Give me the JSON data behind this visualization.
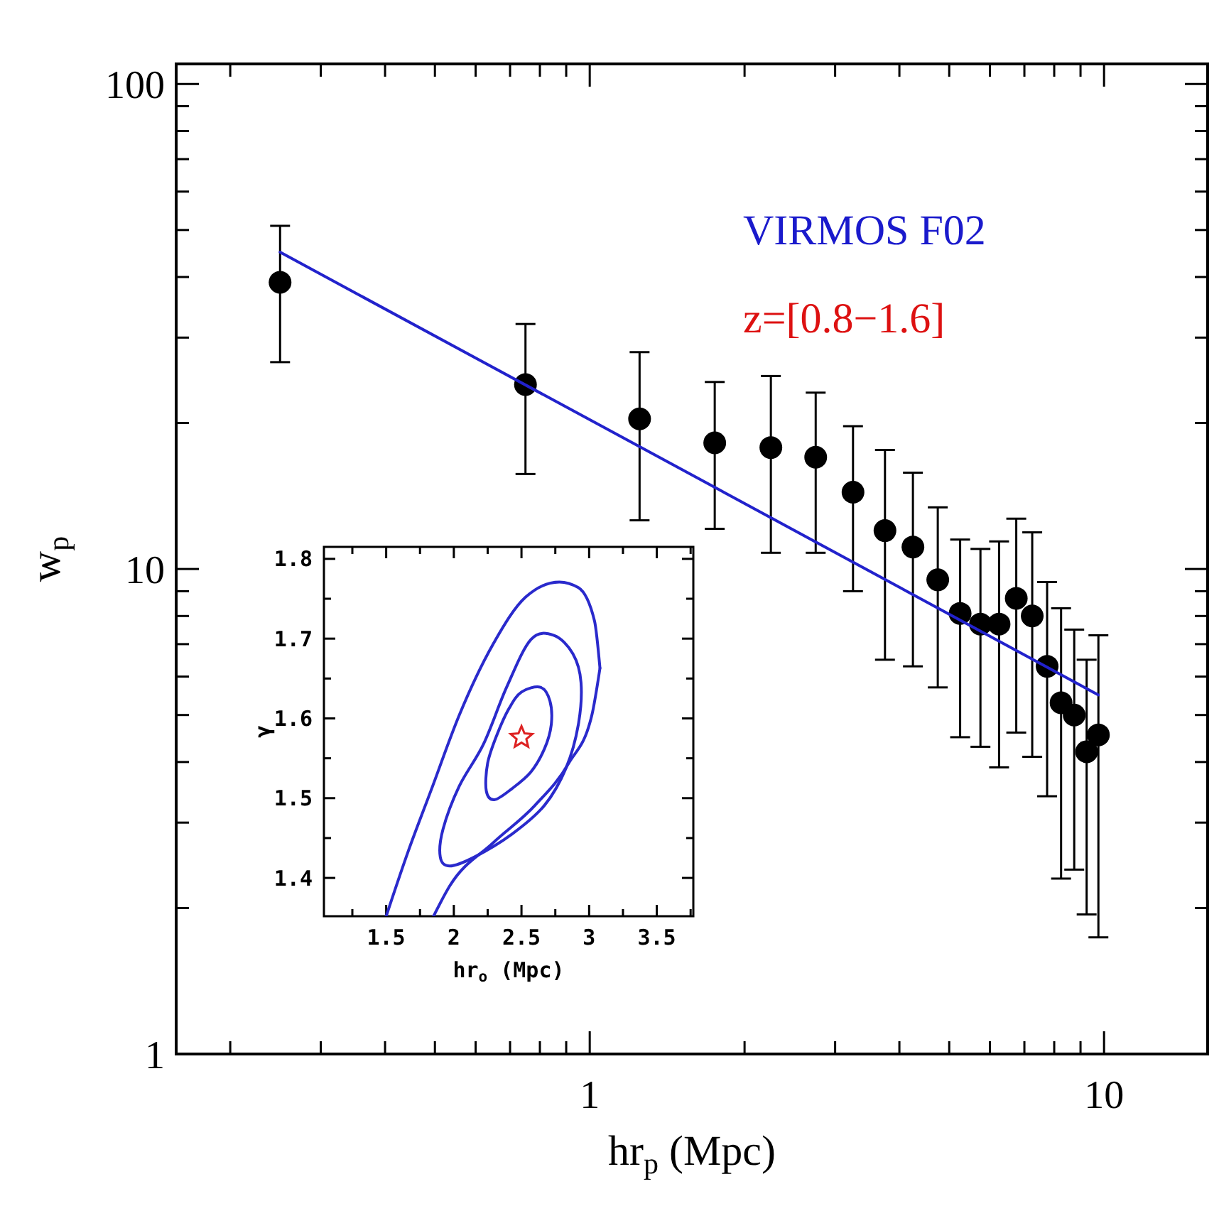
{
  "chart_data": [
    {
      "type": "scatter",
      "xlabel": "hr$_{p}$ (Mpc)",
      "ylabel": "w$_{p}$",
      "annotations": [
        "VIRMOS F02",
        "z=[0.8−1.6]"
      ],
      "log": "xy",
      "marker": "circle",
      "xlim": [
        0.157,
        15.9
      ],
      "ylim": [
        1,
        110
      ],
      "xticks": [
        {
          "value": 0.2,
          "label": null
        },
        {
          "value": 0.3,
          "label": null
        },
        {
          "value": 0.4,
          "label": null
        },
        {
          "value": 0.5,
          "label": null
        },
        {
          "value": 0.6,
          "label": null
        },
        {
          "value": 0.7,
          "label": null
        },
        {
          "value": 0.8,
          "label": null
        },
        {
          "value": 0.9,
          "label": null
        },
        1,
        {
          "value": 2,
          "label": null
        },
        {
          "value": 3,
          "label": null
        },
        {
          "value": 4,
          "label": null
        },
        {
          "value": 5,
          "label": null
        },
        {
          "value": 6,
          "label": null
        },
        {
          "value": 7,
          "label": null
        },
        {
          "value": 8,
          "label": null
        },
        {
          "value": 9,
          "label": null
        },
        10
      ],
      "yticks": [
        1,
        {
          "value": 2,
          "label": null
        },
        {
          "value": 3,
          "label": null
        },
        {
          "value": 4,
          "label": null
        },
        {
          "value": 5,
          "label": null
        },
        {
          "value": 6,
          "label": null
        },
        {
          "value": 7,
          "label": null
        },
        {
          "value": 8,
          "label": null
        },
        {
          "value": 9,
          "label": null
        },
        10,
        {
          "value": 20,
          "label": null
        },
        {
          "value": 30,
          "label": null
        },
        {
          "value": 40,
          "label": null
        },
        {
          "value": 50,
          "label": null
        },
        {
          "value": 60,
          "label": null
        },
        {
          "value": 70,
          "label": null
        },
        {
          "value": 80,
          "label": null
        },
        {
          "value": 90,
          "label": null
        },
        100
      ],
      "series": [
        {
          "color": "#000000",
          "x": [
            0.25,
            0.75,
            1.25,
            1.75,
            2.25,
            2.75,
            3.25,
            3.75,
            4.25,
            4.75,
            5.25,
            5.75,
            6.25,
            6.75,
            7.25,
            7.75,
            8.25,
            8.75,
            9.25,
            9.75
          ],
          "values": [
            39,
            24,
            20.4,
            18.2,
            17.8,
            17,
            14.4,
            12,
            11.1,
            9.5,
            8.1,
            7.7,
            7.7,
            8.7,
            8,
            6.3,
            5.3,
            5,
            4.2,
            4.55
          ],
          "errors": [
            [
              26.7,
              51
            ],
            [
              15.7,
              32
            ],
            [
              12.6,
              28
            ],
            [
              12.1,
              24.3
            ],
            [
              10.8,
              25
            ],
            [
              10.8,
              23.1
            ],
            [
              9,
              19.7
            ],
            [
              6.5,
              17.6
            ],
            [
              6.3,
              15.8
            ],
            [
              5.7,
              13.4
            ],
            [
              4.5,
              11.5
            ],
            [
              4.3,
              11
            ],
            [
              3.9,
              11.4
            ],
            [
              4.6,
              12.7
            ],
            [
              4.1,
              11.9
            ],
            [
              3.4,
              9.4
            ],
            [
              2.3,
              8.3
            ],
            [
              2.4,
              7.5
            ],
            [
              1.94,
              6.5
            ],
            [
              1.74,
              7.3
            ]
          ]
        },
        {
          "type": "line",
          "color": "#2222cc",
          "marker": "none",
          "x": [
            0.25,
            9.75
          ],
          "values": [
            45,
            5.5
          ]
        }
      ]
    },
    {
      "type": "line",
      "xlabel": "hr$_{o}$ (Mpc)",
      "ylabel": "γ",
      "xlim": [
        1.04,
        3.77
      ],
      "ylim": [
        1.352,
        1.815
      ],
      "marker": "none",
      "xticks": [
        {
          "value": 1.25,
          "label": null
        },
        1.5,
        {
          "value": 1.75,
          "label": null
        },
        2,
        {
          "value": 2.25,
          "label": null
        },
        2.5,
        {
          "value": 2.75,
          "label": null
        },
        3,
        {
          "value": 3.25,
          "label": null
        },
        3.5,
        {
          "value": 3.75,
          "label": null
        }
      ],
      "yticks": [
        1.4,
        {
          "value": 1.45,
          "label": null
        },
        1.5,
        {
          "value": 1.55,
          "label": null
        },
        1.6,
        {
          "value": 1.65,
          "label": null
        },
        1.7,
        {
          "value": 1.75,
          "label": null
        },
        1.8
      ],
      "series": [
        {
          "color": "#2a2acc",
          "x": [
            1.5,
            1.66,
            1.83,
            2.04,
            2.29,
            2.53,
            2.78,
            2.92,
            3.04,
            3.08
          ],
          "values": [
            1.352,
            1.432,
            1.509,
            1.604,
            1.693,
            1.752,
            1.771,
            1.764,
            1.722,
            1.663
          ]
        },
        {
          "color": "#2a2acc",
          "x": [
            1.85,
            1.97,
            2.29,
            2.6,
            2.85,
            3.02,
            3.08
          ],
          "values": [
            1.352,
            1.39,
            1.444,
            1.491,
            1.544,
            1.604,
            1.663
          ]
        },
        {
          "type": "scatter",
          "marker": "star",
          "color": "#dd2222",
          "x": [
            2.5
          ],
          "values": [
            1.576
          ]
        }
      ]
    }
  ]
}
